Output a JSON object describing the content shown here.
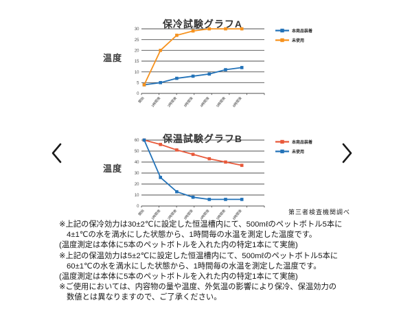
{
  "source_note": "第三者検査機関調べ",
  "nav": {
    "prev_label": "前へ",
    "next_label": "次へ"
  },
  "chart_data": [
    {
      "type": "line",
      "title": "保冷試験グラフA",
      "ylabel": "温度",
      "xlabel": "",
      "categories": [
        "開始",
        "1時間後",
        "2時間後",
        "3時間後",
        "4時間後",
        "5時間後",
        "6時間後"
      ],
      "series": [
        {
          "name": "本商品装着",
          "color": "#2272b8",
          "values": [
            4,
            5,
            7,
            8,
            9,
            11,
            12
          ]
        },
        {
          "name": "未使用",
          "color": "#f6921e",
          "values": [
            4,
            20,
            27,
            29,
            30,
            30,
            30
          ]
        }
      ],
      "ylim": [
        0,
        30
      ],
      "ytick_step": 5,
      "grid": true,
      "legend_position": "right"
    },
    {
      "type": "line",
      "title": "保温試験グラフB",
      "ylabel": "温度",
      "xlabel": "",
      "categories": [
        "開始",
        "1時間後",
        "2時間後",
        "3時間後",
        "4時間後",
        "5時間後",
        "6時間後"
      ],
      "series": [
        {
          "name": "本商品装着",
          "color": "#e8593a",
          "values": [
            60,
            56,
            51,
            47,
            43,
            40,
            37
          ]
        },
        {
          "name": "未使用",
          "color": "#2272b8",
          "values": [
            60,
            26,
            13,
            8,
            6,
            6,
            6
          ]
        }
      ],
      "ylim": [
        0,
        60
      ],
      "ytick_step": 10,
      "grid": true,
      "legend_position": "right"
    }
  ],
  "notes": [
    {
      "text": "※上記の保冷効力は30±2℃に設定した恒温槽内にて、500mℓのペットボトル5本に",
      "indent": 0
    },
    {
      "text": "4±1℃の水を満水にした状態から、1時間毎の水温を測定した温度です。",
      "indent": 1
    },
    {
      "text": "(温度測定は本体に5本のペットボトルを入れた内の特定1本にて実施)",
      "indent": 0
    },
    {
      "text": "※上記の保温効力は5±2℃に設定した恒温槽内にて、500mℓのペットボトル5本に",
      "indent": 0
    },
    {
      "text": "60±1℃の水を満水にした状態から、1時間毎の水温を測定した温度です。",
      "indent": 1
    },
    {
      "text": "(温度測定は本体に5本のペットボトルを入れた内の特定1本にて実施)",
      "indent": 0
    },
    {
      "text": "※ご使用においては、内容物の量や温度、外気温の影響により保冷、保温効力の",
      "indent": 0
    },
    {
      "text": "数値とは異なりますので、ご了承ください。",
      "indent": 1
    }
  ],
  "colors": {
    "grid": "#4d4d4d",
    "axis_text": "#4d4d4d",
    "xtick_text": "#3a3a3a",
    "chevron": "#1a1a1a"
  }
}
